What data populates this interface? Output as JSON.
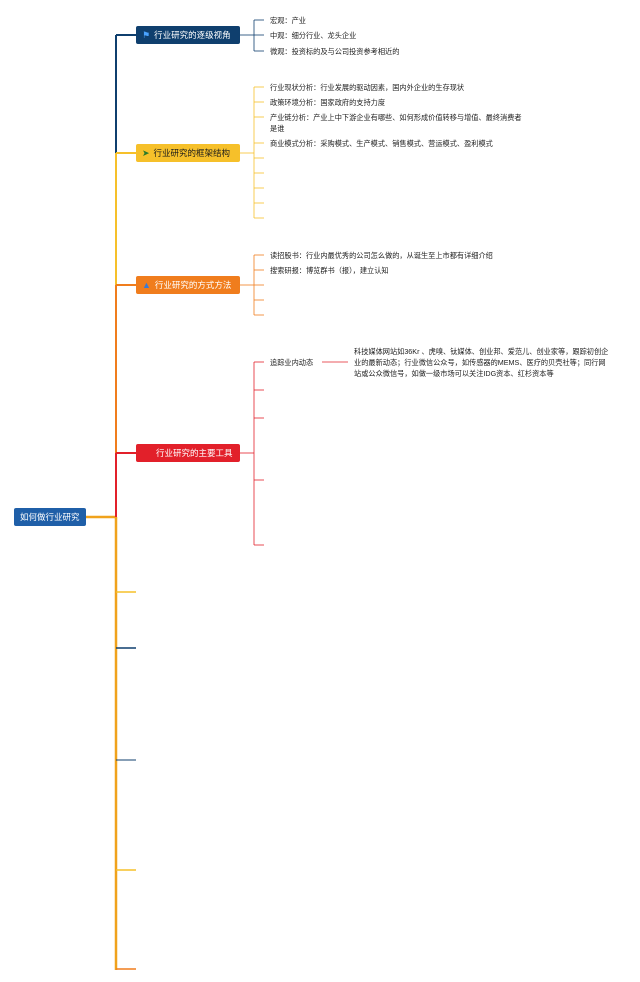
{
  "root": {
    "label": "如何做行业研究",
    "color": "#1f5fa8"
  },
  "branches": [
    {
      "label": "行业研究的逐级视角",
      "color": "#0f3f6e",
      "icon": "flag-icon",
      "leaves": [
        "宏观：产业",
        "中观：细分行业、龙头企业",
        "微观：投资标的及与公司投资参考相近的"
      ]
    },
    {
      "label": "行业研究的框架结构",
      "color": "#f6c02a",
      "icon": "send-icon",
      "leaves": [
        "行业现状分析：行业发展的驱动因素，国内外企业的生存现状",
        "政策环境分析：国家政府的支持力度",
        "产业链分析：产业上中下游企业有哪些、如何形成价值转移与增值、最终消费者是谁",
        "商业模式分析：采购模式、生产模式、销售模式、营运模式、盈利模式"
      ]
    },
    {
      "label": "行业研究的方式方法",
      "color": "#f07d1d",
      "icon": "triangle-icon",
      "leaves": [
        "读招股书：行业内最优秀的公司怎么做的，从诞生至上市都有详细介绍",
        "搜索研报：博览群书（报），建立认知"
      ]
    },
    {
      "label": "行业研究的主要工具",
      "color": "#e2202a",
      "icon": "",
      "leaves": [
        "追踪业内动态"
      ],
      "detail": "科技媒体网站如36Kr 、虎嗅、钛媒体、创业邦、爱范儿、创业家等，跟踪初创企业的最新动态；行业微信公众号，如传感器的MEMS、医疗的贝壳社等；同行网站或公众微信号，如做一级市场可以关注IDG资本、红杉资本等"
    }
  ]
}
